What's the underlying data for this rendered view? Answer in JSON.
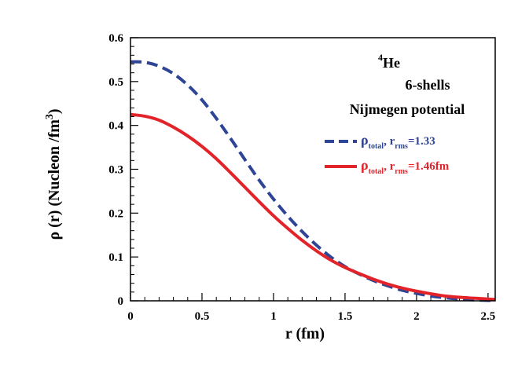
{
  "chart_data": {
    "type": "line",
    "title": "",
    "annotations": {
      "nucleus_mass": "4",
      "nucleus_symbol": "He",
      "shells": "6-shells",
      "potential": "Nijmegen potential"
    },
    "xlabel": "r (fm)",
    "ylabel": {
      "part1": "ρ (r) (Nucleon /fm",
      "sup": "3",
      "part2": ")"
    },
    "xlim": [
      0,
      2.55
    ],
    "ylim": [
      0,
      0.6
    ],
    "xticks": [
      {
        "value": 0,
        "label": "0"
      },
      {
        "value": 0.5,
        "label": "0.5"
      },
      {
        "value": 1,
        "label": "1"
      },
      {
        "value": 1.5,
        "label": "1.5"
      },
      {
        "value": 2,
        "label": "2"
      },
      {
        "value": 2.5,
        "label": "2.5"
      }
    ],
    "yticks": [
      {
        "value": 0,
        "label": "0"
      },
      {
        "value": 0.1,
        "label": "0.1"
      },
      {
        "value": 0.2,
        "label": "0.2"
      },
      {
        "value": 0.3,
        "label": "0.3"
      },
      {
        "value": 0.4,
        "label": "0.4"
      },
      {
        "value": 0.5,
        "label": "0.5"
      },
      {
        "value": 0.6,
        "label": "0.6"
      }
    ],
    "series": [
      {
        "name": "rho_total_1.33",
        "color": "#2e4596",
        "style": "dashed",
        "legend": {
          "sym": "ρ",
          "sub1": "total",
          "mid": ", r",
          "sub2": "rms",
          "tail": "=1.33"
        },
        "x": [
          0,
          0.1,
          0.2,
          0.3,
          0.4,
          0.5,
          0.6,
          0.7,
          0.8,
          0.9,
          1.0,
          1.1,
          1.2,
          1.3,
          1.4,
          1.5,
          1.6,
          1.7,
          1.8,
          1.9,
          2.0,
          2.1,
          2.2,
          2.3,
          2.4,
          2.5,
          2.55
        ],
        "y": [
          0.545,
          0.544,
          0.535,
          0.518,
          0.492,
          0.458,
          0.416,
          0.37,
          0.322,
          0.275,
          0.232,
          0.193,
          0.158,
          0.127,
          0.1,
          0.078,
          0.061,
          0.046,
          0.034,
          0.024,
          0.017,
          0.011,
          0.007,
          0.004,
          0.002,
          0.001,
          0.001
        ]
      },
      {
        "name": "rho_total_1.46fm",
        "color": "#e3232a",
        "style": "solid",
        "legend": {
          "sym": "ρ",
          "sub1": "total",
          "mid": ", r",
          "sub2": "rms",
          "tail": "=1.46fm"
        },
        "x": [
          0,
          0.1,
          0.2,
          0.3,
          0.4,
          0.5,
          0.6,
          0.7,
          0.8,
          0.9,
          1.0,
          1.1,
          1.2,
          1.3,
          1.4,
          1.5,
          1.6,
          1.7,
          1.8,
          1.9,
          2.0,
          2.1,
          2.2,
          2.3,
          2.4,
          2.5,
          2.55
        ],
        "y": [
          0.425,
          0.421,
          0.412,
          0.396,
          0.376,
          0.352,
          0.324,
          0.292,
          0.259,
          0.226,
          0.194,
          0.165,
          0.138,
          0.114,
          0.093,
          0.076,
          0.062,
          0.049,
          0.038,
          0.029,
          0.022,
          0.016,
          0.011,
          0.008,
          0.006,
          0.004,
          0.003
        ]
      }
    ]
  }
}
